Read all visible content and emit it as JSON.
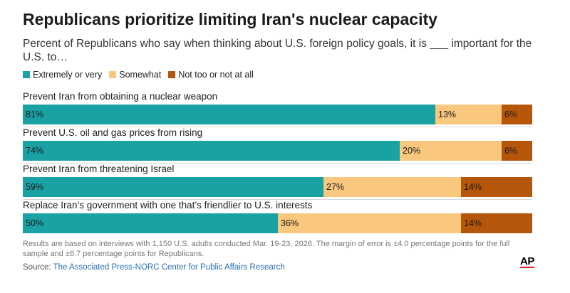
{
  "colors": {
    "extremely": "#1aa1a4",
    "somewhat": "#f9c77d",
    "not": "#b5560a"
  },
  "chart_data": {
    "type": "bar",
    "orientation": "horizontal",
    "stacked": true,
    "title": "Republicans prioritize limiting Iran's nuclear capacity",
    "subtitle": "Percent of Republicans who say when thinking about U.S. foreign policy goals, it is ___ important for the U.S. to…",
    "legend": [
      "Extremely or very",
      "Somewhat",
      "Not too or not at all"
    ],
    "legend_position": "top-left",
    "categories": [
      "Prevent Iran from obtaining a nuclear weapon",
      "Prevent U.S. oil and gas prices from rising",
      "Prevent Iran from threatening Israel",
      "Replace Iran’s government with one that’s friendlier to U.S. interests"
    ],
    "series": [
      {
        "name": "Extremely or very",
        "values": [
          81,
          74,
          59,
          50
        ]
      },
      {
        "name": "Somewhat",
        "values": [
          13,
          20,
          27,
          36
        ]
      },
      {
        "name": "Not too or not at all",
        "values": [
          6,
          6,
          14,
          14
        ]
      }
    ],
    "value_suffix": "%",
    "xlim": [
      0,
      100
    ]
  },
  "footer": {
    "note": "Results are based on interviews with 1,150 U.S. adults conducted Mar. 19-23, 2026. The margin of error is ±4.0 percentage points for the full sample and ±6.7 percentage points for Republicans.",
    "source_prefix": "Source: ",
    "source_name": "The Associated Press-NORC Center for Public Affairs Research",
    "logo": "AP"
  }
}
